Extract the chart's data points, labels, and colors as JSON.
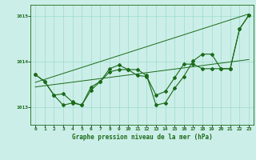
{
  "title": "Graphe pression niveau de la mer (hPa)",
  "bg_color": "#cceee8",
  "grid_color": "#99ddcc",
  "line_color": "#1a6b1a",
  "xlim": [
    -0.5,
    23.5
  ],
  "ylim": [
    1012.62,
    1015.25
  ],
  "yticks": [
    1013,
    1014,
    1015
  ],
  "xticks": [
    0,
    1,
    2,
    3,
    4,
    5,
    6,
    7,
    8,
    9,
    10,
    11,
    12,
    13,
    14,
    15,
    16,
    17,
    18,
    19,
    20,
    21,
    22,
    23
  ],
  "series1_x": [
    0,
    1,
    2,
    3,
    4,
    5,
    6,
    7,
    8,
    9,
    10,
    11,
    12,
    13,
    14,
    15,
    16,
    17,
    18,
    19,
    20,
    21,
    22,
    23
  ],
  "series1_y": [
    1013.72,
    1013.57,
    1013.27,
    1013.05,
    1013.1,
    1013.05,
    1013.38,
    1013.57,
    1013.85,
    1013.93,
    1013.83,
    1013.83,
    1013.7,
    1013.05,
    1013.1,
    1013.42,
    1013.68,
    1014.02,
    1014.17,
    1014.17,
    1013.85,
    1013.85,
    1014.72,
    1015.02
  ],
  "series2_x": [
    0,
    1,
    2,
    3,
    4,
    5,
    6,
    7,
    8,
    9,
    10,
    11,
    12,
    13,
    14,
    15,
    16,
    17,
    18,
    19,
    20,
    21,
    22,
    23
  ],
  "series2_y": [
    1013.72,
    1013.57,
    1013.27,
    1013.3,
    1013.12,
    1013.05,
    1013.45,
    1013.57,
    1013.78,
    1013.83,
    1013.83,
    1013.7,
    1013.68,
    1013.27,
    1013.35,
    1013.65,
    1013.95,
    1013.95,
    1013.85,
    1013.85,
    1013.85,
    1013.85,
    1014.72,
    1015.02
  ],
  "trend1_x": [
    0,
    23
  ],
  "trend1_y": [
    1013.45,
    1014.05
  ],
  "trend2_x": [
    0,
    23
  ],
  "trend2_y": [
    1013.55,
    1015.05
  ]
}
